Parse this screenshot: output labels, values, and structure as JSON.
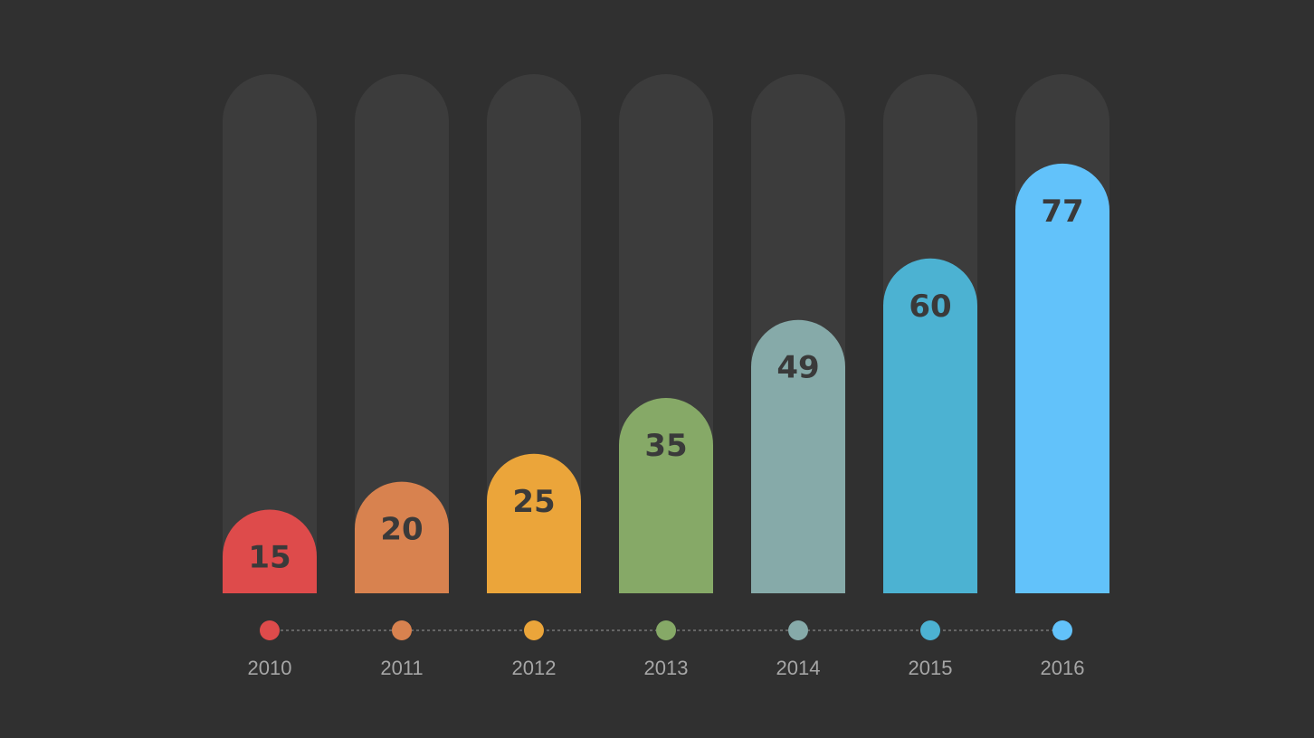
{
  "chart_data": {
    "type": "bar",
    "title": "",
    "xlabel": "",
    "ylabel": "",
    "ylim": [
      0,
      100
    ],
    "grid": false,
    "legend": "none",
    "categories": [
      "2010",
      "2011",
      "2012",
      "2013",
      "2014",
      "2015",
      "2016"
    ],
    "values": [
      15,
      20,
      25,
      35,
      49,
      60,
      77
    ],
    "value_labels": [
      "15",
      "20",
      "25",
      "35",
      "49",
      "60",
      "77"
    ],
    "colors": [
      "#de4b4b",
      "#d8824f",
      "#eba53a",
      "#86a967",
      "#86aaa9",
      "#4cb2d2",
      "#62c2fa"
    ],
    "track_color": "#3c3c3c",
    "background_color": "#303030"
  }
}
